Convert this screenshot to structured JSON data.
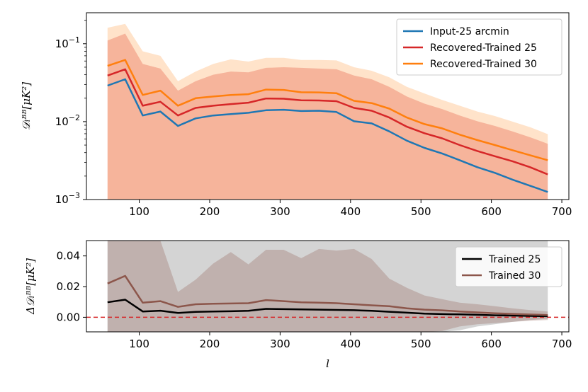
{
  "chart_data": [
    {
      "type": "line",
      "yscale": "log",
      "ylabel": "𝒟ₗᴮᴮ[μK²]",
      "xlim": [
        25,
        710
      ],
      "ylim": [
        0.001,
        0.25
      ],
      "x_ticks": [
        100,
        200,
        300,
        400,
        500,
        600,
        700
      ],
      "y_ticks": [
        {
          "value": 0.001,
          "base": "10",
          "exp": "−3"
        },
        {
          "value": 0.01,
          "base": "10",
          "exp": "−2"
        },
        {
          "value": 0.1,
          "base": "10",
          "exp": "−1"
        }
      ],
      "legend_position": "top-right",
      "x": [
        55,
        80,
        105,
        130,
        155,
        180,
        205,
        230,
        255,
        280,
        305,
        330,
        355,
        380,
        405,
        430,
        455,
        480,
        505,
        530,
        555,
        580,
        605,
        630,
        655,
        680
      ],
      "series": [
        {
          "name": "Input-25 arcmin",
          "color": "#1f77b4",
          "values": [
            0.029,
            0.035,
            0.012,
            0.0135,
            0.0088,
            0.011,
            0.012,
            0.0125,
            0.013,
            0.014,
            0.0142,
            0.0137,
            0.0138,
            0.0133,
            0.0101,
            0.0095,
            0.0075,
            0.0057,
            0.0046,
            0.0039,
            0.0032,
            0.0026,
            0.0022,
            0.0018,
            0.0015,
            0.00125
          ],
          "band": null
        },
        {
          "name": "Recovered-Trained 25",
          "color": "#d62728",
          "values": [
            0.039,
            0.047,
            0.016,
            0.018,
            0.012,
            0.015,
            0.016,
            0.0168,
            0.0175,
            0.0198,
            0.0197,
            0.0188,
            0.0187,
            0.0183,
            0.015,
            0.0138,
            0.0113,
            0.0086,
            0.0071,
            0.0061,
            0.005,
            0.0042,
            0.0036,
            0.0031,
            0.0026,
            0.0021
          ],
          "band": {
            "color": "#d62728",
            "opacity": 0.28,
            "lower": [
              0.001,
              0.001,
              0.001,
              0.001,
              0.001,
              0.001,
              0.001,
              0.001,
              0.001,
              0.001,
              0.001,
              0.001,
              0.001,
              0.001,
              0.001,
              0.001,
              0.001,
              0.001,
              0.001,
              0.001,
              0.001,
              0.001,
              0.001,
              0.001,
              0.001,
              0.001
            ],
            "upper": [
              0.11,
              0.135,
              0.055,
              0.048,
              0.025,
              0.033,
              0.04,
              0.044,
              0.043,
              0.049,
              0.05,
              0.049,
              0.048,
              0.047,
              0.039,
              0.035,
              0.028,
              0.021,
              0.017,
              0.0145,
              0.012,
              0.0101,
              0.0088,
              0.0075,
              0.0063,
              0.0052
            ]
          }
        },
        {
          "name": "Recovered-Trained 30",
          "color": "#ff7f0e",
          "values": [
            0.052,
            0.062,
            0.022,
            0.025,
            0.016,
            0.02,
            0.021,
            0.022,
            0.0225,
            0.0258,
            0.0255,
            0.0238,
            0.0237,
            0.0232,
            0.0185,
            0.0173,
            0.0147,
            0.0113,
            0.0093,
            0.0082,
            0.0068,
            0.0058,
            0.005,
            0.0043,
            0.0037,
            0.0032
          ],
          "band": {
            "color": "#ff7f0e",
            "opacity": 0.22,
            "lower": [
              0.001,
              0.001,
              0.001,
              0.001,
              0.001,
              0.001,
              0.001,
              0.001,
              0.001,
              0.001,
              0.001,
              0.001,
              0.001,
              0.001,
              0.001,
              0.001,
              0.001,
              0.001,
              0.001,
              0.001,
              0.001,
              0.001,
              0.001,
              0.001,
              0.001,
              0.001
            ],
            "upper": [
              0.16,
              0.18,
              0.08,
              0.07,
              0.033,
              0.044,
              0.055,
              0.063,
              0.059,
              0.066,
              0.066,
              0.062,
              0.062,
              0.061,
              0.05,
              0.045,
              0.037,
              0.028,
              0.023,
              0.019,
              0.016,
              0.0135,
              0.0118,
              0.01,
              0.0085,
              0.0069
            ]
          }
        }
      ]
    },
    {
      "type": "line",
      "xlabel": "l",
      "ylabel": "Δ𝒟ₗᴮᴮ[μK²]",
      "xlim": [
        25,
        710
      ],
      "ylim": [
        -0.0095,
        0.05
      ],
      "x_ticks": [
        100,
        200,
        300,
        400,
        500,
        600,
        700
      ],
      "y_ticks": [
        {
          "value": 0.0,
          "label": "0.00"
        },
        {
          "value": 0.02,
          "label": "0.02"
        },
        {
          "value": 0.04,
          "label": "0.04"
        }
      ],
      "reference_line": {
        "y": 0.0,
        "color": "#d62728",
        "style": "dashed"
      },
      "legend_position": "top-right",
      "x": [
        55,
        80,
        105,
        130,
        155,
        180,
        205,
        230,
        255,
        280,
        305,
        330,
        355,
        380,
        405,
        430,
        455,
        480,
        505,
        530,
        555,
        580,
        605,
        630,
        655,
        680
      ],
      "series": [
        {
          "name": "Trained 25",
          "color": "#000000",
          "values": [
            0.0098,
            0.0115,
            0.0038,
            0.0043,
            0.0028,
            0.0035,
            0.0038,
            0.0039,
            0.0042,
            0.0055,
            0.0053,
            0.0051,
            0.005,
            0.0048,
            0.0046,
            0.0042,
            0.0036,
            0.003,
            0.0024,
            0.0021,
            0.0019,
            0.0016,
            0.0013,
            0.0011,
            0.0009,
            0.0007
          ],
          "band": {
            "color": "#3a3a3a",
            "opacity": 0.22,
            "lower": [
              -0.0095,
              -0.0095,
              -0.0095,
              -0.0095,
              -0.0095,
              -0.0095,
              -0.0095,
              -0.0095,
              -0.0095,
              -0.0095,
              -0.0095,
              -0.0095,
              -0.0095,
              -0.0095,
              -0.0095,
              -0.0095,
              -0.0095,
              -0.0095,
              -0.0095,
              -0.0095,
              -0.0085,
              -0.006,
              -0.0045,
              -0.003,
              -0.0018,
              -0.001
            ],
            "upper": [
              0.05,
              0.05,
              0.05,
              0.05,
              0.05,
              0.05,
              0.05,
              0.05,
              0.05,
              0.05,
              0.05,
              0.05,
              0.05,
              0.05,
              0.05,
              0.05,
              0.05,
              0.05,
              0.05,
              0.05,
              0.05,
              0.05,
              0.05,
              0.05,
              0.05,
              0.05
            ]
          }
        },
        {
          "name": "Trained 30",
          "color": "#8c564b",
          "values": [
            0.022,
            0.027,
            0.0095,
            0.0105,
            0.0068,
            0.0085,
            0.0088,
            0.009,
            0.0092,
            0.0112,
            0.0105,
            0.0098,
            0.0095,
            0.0092,
            0.0085,
            0.0078,
            0.0072,
            0.0058,
            0.005,
            0.0045,
            0.0038,
            0.0032,
            0.0026,
            0.0022,
            0.0018,
            0.0015
          ],
          "band": {
            "color": "#8c564b",
            "opacity": 0.28,
            "lower": [
              -0.0095,
              -0.0095,
              -0.0095,
              -0.0095,
              -0.0095,
              -0.0095,
              -0.0095,
              -0.0095,
              -0.0095,
              -0.0095,
              -0.0095,
              -0.0095,
              -0.0095,
              -0.0095,
              -0.0095,
              -0.0095,
              -0.0095,
              -0.0095,
              -0.0095,
              -0.009,
              -0.006,
              -0.0045,
              -0.0038,
              -0.003,
              -0.0022,
              -0.0018
            ],
            "upper": [
              0.05,
              0.05,
              0.05,
              0.05,
              0.0165,
              0.0245,
              0.035,
              0.0425,
              0.0345,
              0.044,
              0.044,
              0.0385,
              0.0445,
              0.0435,
              0.0445,
              0.038,
              0.0252,
              0.0192,
              0.0142,
              0.0118,
              0.0095,
              0.0085,
              0.0072,
              0.0058,
              0.0047,
              0.0038
            ]
          }
        }
      ]
    }
  ]
}
